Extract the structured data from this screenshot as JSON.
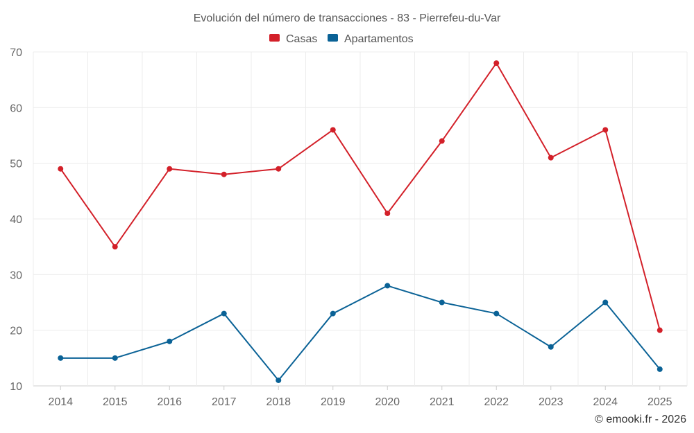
{
  "chart_data": {
    "type": "line",
    "title": "Evolución del número de transacciones - 83 - Pierrefeu-du-Var",
    "categories": [
      "2014",
      "2015",
      "2016",
      "2017",
      "2018",
      "2019",
      "2020",
      "2021",
      "2022",
      "2023",
      "2024",
      "2025"
    ],
    "series": [
      {
        "name": "Casas",
        "color": "#d32029",
        "values": [
          49,
          35,
          49,
          48,
          49,
          56,
          41,
          54,
          68,
          51,
          56,
          20
        ]
      },
      {
        "name": "Apartamentos",
        "color": "#0a6296",
        "values": [
          15,
          15,
          18,
          23,
          11,
          23,
          28,
          25,
          23,
          17,
          25,
          13
        ]
      }
    ],
    "ylim": [
      10,
      70
    ],
    "yticks": [
      10,
      20,
      30,
      40,
      50,
      60,
      70
    ],
    "xlabel": "",
    "ylabel": "",
    "grid": true,
    "legend": "top-center"
  },
  "credit": "© emooki.fr - 2026"
}
